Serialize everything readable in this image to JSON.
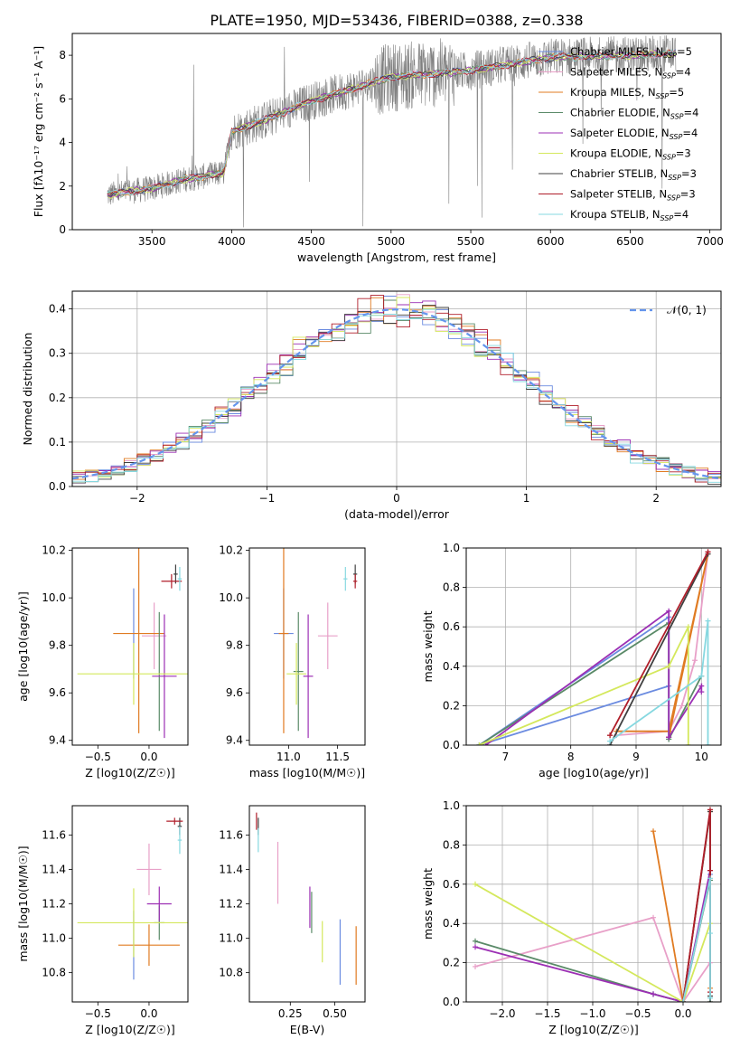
{
  "figure": {
    "title": "PLATE=1950, MJD=53436, FIBERID=0388, z=0.338"
  },
  "colors": {
    "spectrum": "#808080",
    "normal": "#6495ED"
  },
  "models": [
    {
      "name": "Chabrier MILES, N$_{SSP}$=5",
      "label": "Chabrier MILES, N",
      "sub": "SSP",
      "rest": "=5",
      "color": "#6B8BE0"
    },
    {
      "name": "Salpeter MILES, N$_{SSP}$=4",
      "label": "Salpeter MILES, N",
      "sub": "SSP",
      "rest": "=4",
      "color": "#E8A0C8"
    },
    {
      "name": "Kroupa MILES, N$_{SSP}$=5",
      "label": "Kroupa MILES, N",
      "sub": "SSP",
      "rest": "=5",
      "color": "#E07B22"
    },
    {
      "name": "Chabrier ELODIE, N$_{SSP}$=4",
      "label": "Chabrier ELODIE, N",
      "sub": "SSP",
      "rest": "=4",
      "color": "#5A8A68"
    },
    {
      "name": "Salpeter ELODIE, N$_{SSP}$=4",
      "label": "Salpeter ELODIE, N",
      "sub": "SSP",
      "rest": "=4",
      "color": "#9C2FB4"
    },
    {
      "name": "Kroupa ELODIE, N$_{SSP}$=3",
      "label": "Kroupa ELODIE, N",
      "sub": "SSP",
      "rest": "=3",
      "color": "#D4E85C"
    },
    {
      "name": "Chabrier STELIB, N$_{SSP}$=3",
      "label": "Chabrier STELIB, N",
      "sub": "SSP",
      "rest": "=3",
      "color": "#404040"
    },
    {
      "name": "Salpeter STELIB, N$_{SSP}$=3",
      "label": "Salpeter STELIB, N",
      "sub": "SSP",
      "rest": "=3",
      "color": "#B01E2A"
    },
    {
      "name": "Kroupa STELIB, N$_{SSP}$=4",
      "label": "Kroupa STELIB, N",
      "sub": "SSP",
      "rest": "=4",
      "color": "#86D8E0"
    }
  ],
  "chart_data": [
    {
      "id": "spectrum",
      "type": "line",
      "xlabel": "wavelength [Angstrom, rest frame]",
      "ylabel": "Flux [fλ10⁻¹⁷ erg cm⁻² s⁻¹ A⁻¹]",
      "xlim": [
        3000,
        7070
      ],
      "ylim": [
        0,
        9
      ],
      "xticks": [
        3500,
        4000,
        4500,
        5000,
        5500,
        6000,
        6500,
        7000
      ],
      "yticks": [
        0,
        2,
        4,
        6,
        8
      ],
      "x_range_data": [
        3220,
        6790
      ],
      "continuum": [
        [
          3220,
          1.6
        ],
        [
          3500,
          1.9
        ],
        [
          3700,
          2.3
        ],
        [
          3950,
          2.6
        ],
        [
          4000,
          4.5
        ],
        [
          4200,
          5.0
        ],
        [
          4500,
          5.9
        ],
        [
          5000,
          7.0
        ],
        [
          5500,
          7.3
        ],
        [
          6000,
          7.9
        ],
        [
          6500,
          8.0
        ],
        [
          6790,
          8.1
        ]
      ],
      "grid": false,
      "legend": "top-right"
    },
    {
      "id": "residuals",
      "type": "step",
      "xlabel": "(data-model)/error",
      "ylabel": "Normed distribution",
      "xlim": [
        -2.5,
        2.5
      ],
      "ylim": [
        0,
        0.44
      ],
      "xticks": [
        -2,
        -1,
        0,
        1,
        2
      ],
      "yticks": [
        0.0,
        0.1,
        0.2,
        0.3,
        0.4
      ],
      "bin_edges_start": -2.5,
      "bin_width": 0.1,
      "normal_label": "𝒩(0, 1)",
      "grid": true,
      "legend": "top-right"
    },
    {
      "id": "age_vs_Z",
      "type": "scatter",
      "xlabel": "Z [log10(Z/Z☉)]",
      "ylabel": "age  [log10(age/yr)]",
      "xlim": [
        -0.75,
        0.38
      ],
      "ylim": [
        9.38,
        10.21
      ],
      "xticks": [
        -0.5,
        0.0
      ],
      "yticks": [
        9.4,
        9.6,
        9.8,
        10.0,
        10.2
      ],
      "points": [
        {
          "x": -0.15,
          "y": 9.85,
          "xerr": 0.0,
          "yerr": 0.19
        },
        {
          "x": 0.05,
          "y": 9.84,
          "xerr": 0.12,
          "yerr": 0.14
        },
        {
          "x": -0.1,
          "y": 9.85,
          "xerr": 0.25,
          "yerr": 0.42
        },
        {
          "x": 0.1,
          "y": 9.69,
          "xerr": 0.0,
          "yerr": 0.25
        },
        {
          "x": 0.15,
          "y": 9.67,
          "xerr": 0.12,
          "yerr": 0.26
        },
        {
          "x": -0.15,
          "y": 9.68,
          "xerr": 0.55,
          "yerr": 0.13
        },
        {
          "x": 0.26,
          "y": 10.1,
          "xerr": 0.02,
          "yerr": 0.04
        },
        {
          "x": 0.22,
          "y": 10.07,
          "xerr": 0.1,
          "yerr": 0.03
        },
        {
          "x": 0.3,
          "y": 10.08,
          "xerr": 0.02,
          "yerr": 0.05
        }
      ],
      "grid": false
    },
    {
      "id": "age_vs_mass",
      "type": "scatter",
      "xlabel": "mass [log10(M/M☉)]",
      "ylabel": "",
      "xlim": [
        10.6,
        11.78
      ],
      "ylim": [
        9.38,
        10.21
      ],
      "xticks": [
        11.0,
        11.5
      ],
      "yticks": [
        9.4,
        9.6,
        9.8,
        10.0,
        10.2
      ],
      "points": [
        {
          "x": 10.95,
          "y": 9.85,
          "xerr": 0.1,
          "yerr": 0.19
        },
        {
          "x": 11.4,
          "y": 9.84,
          "xerr": 0.1,
          "yerr": 0.14
        },
        {
          "x": 10.95,
          "y": 9.85,
          "xerr": 0.05,
          "yerr": 0.42
        },
        {
          "x": 11.1,
          "y": 9.69,
          "xerr": 0.05,
          "yerr": 0.25
        },
        {
          "x": 11.2,
          "y": 9.67,
          "xerr": 0.05,
          "yerr": 0.26
        },
        {
          "x": 11.08,
          "y": 9.68,
          "xerr": 0.1,
          "yerr": 0.13
        },
        {
          "x": 11.68,
          "y": 10.1,
          "xerr": 0.02,
          "yerr": 0.04
        },
        {
          "x": 11.68,
          "y": 10.07,
          "xerr": 0.02,
          "yerr": 0.03
        },
        {
          "x": 11.58,
          "y": 10.08,
          "xerr": 0.02,
          "yerr": 0.05
        }
      ],
      "grid": false
    },
    {
      "id": "mass_weight_vs_age",
      "type": "line",
      "xlabel": "age  [log10(age/yr)]",
      "ylabel": "mass weight",
      "xlim": [
        6.4,
        10.3
      ],
      "ylim": [
        0,
        1
      ],
      "xticks": [
        7,
        8,
        9,
        10
      ],
      "yticks": [
        0.0,
        0.2,
        0.4,
        0.6,
        0.8,
        1.0
      ],
      "series": [
        {
          "x": [
            6.6,
            9.5,
            9.5,
            9.5,
            6.6
          ],
          "y": [
            0.0,
            0.65,
            0.04,
            0.3,
            0.0
          ]
        },
        {
          "x": [
            8.7,
            9.5,
            9.7,
            9.9,
            10.1
          ],
          "y": [
            0.05,
            0.07,
            0.2,
            0.43,
            0.97
          ]
        },
        {
          "x": [
            8.7,
            9.5,
            10.1,
            9.5
          ],
          "y": [
            0.07,
            0.07,
            0.97,
            0.04
          ]
        },
        {
          "x": [
            6.6,
            9.5,
            9.5,
            10.0,
            9.5
          ],
          "y": [
            0.0,
            0.62,
            0.03,
            0.35,
            0.03
          ]
        },
        {
          "x": [
            6.7,
            9.5,
            9.5,
            10.0,
            10.0
          ],
          "y": [
            0.0,
            0.68,
            0.04,
            0.3,
            0.27
          ]
        },
        {
          "x": [
            6.6,
            9.5,
            9.8,
            9.8
          ],
          "y": [
            0.0,
            0.4,
            0.6,
            0.0
          ]
        },
        {
          "x": [
            8.6,
            10.1,
            10.1,
            8.6
          ],
          "y": [
            0.0,
            0.97,
            0.97,
            0.0
          ]
        },
        {
          "x": [
            8.6,
            10.1,
            10.1,
            8.6
          ],
          "y": [
            0.05,
            0.98,
            0.98,
            0.05
          ]
        },
        {
          "x": [
            8.6,
            10.0,
            10.1,
            10.1
          ],
          "y": [
            0.02,
            0.35,
            0.63,
            0.0
          ]
        }
      ],
      "grid": true
    },
    {
      "id": "mass_vs_Z",
      "type": "scatter",
      "xlabel": "Z [log10(Z/Z☉)]",
      "ylabel": "mass [log10(M/M☉)]",
      "xlim": [
        -0.75,
        0.38
      ],
      "ylim": [
        10.63,
        11.77
      ],
      "xticks": [
        -0.5,
        0.0
      ],
      "yticks": [
        10.8,
        11.0,
        11.2,
        11.4,
        11.6
      ],
      "points": [
        {
          "x": -0.15,
          "y": 10.96,
          "xerr": 0.0,
          "yerr": 0.2
        },
        {
          "x": 0.0,
          "y": 11.4,
          "xerr": 0.12,
          "yerr": 0.15
        },
        {
          "x": 0.0,
          "y": 10.96,
          "xerr": 0.3,
          "yerr": 0.12
        },
        {
          "x": 0.1,
          "y": 11.09,
          "xerr": 0.05,
          "yerr": 0.1
        },
        {
          "x": 0.1,
          "y": 11.2,
          "xerr": 0.12,
          "yerr": 0.1
        },
        {
          "x": -0.15,
          "y": 11.09,
          "xerr": 0.55,
          "yerr": 0.2
        },
        {
          "x": 0.3,
          "y": 11.65,
          "xerr": 0.02,
          "yerr": 0.05
        },
        {
          "x": 0.25,
          "y": 11.68,
          "xerr": 0.08,
          "yerr": 0.02
        },
        {
          "x": 0.3,
          "y": 11.57,
          "xerr": 0.02,
          "yerr": 0.08
        }
      ],
      "grid": false
    },
    {
      "id": "mass_vs_ebv",
      "type": "scatter",
      "xlabel": "E(B-V)",
      "ylabel": "",
      "xlim": [
        0.02,
        0.67
      ],
      "ylim": [
        10.63,
        11.77
      ],
      "xticks": [
        0.25,
        0.5
      ],
      "yticks": [
        10.8,
        11.0,
        11.2,
        11.4,
        11.6
      ],
      "points": [
        {
          "x": 0.53,
          "y": 10.92,
          "xerr": 0.0,
          "yerr": 0.19
        },
        {
          "x": 0.18,
          "y": 11.38,
          "xerr": 0.0,
          "yerr": 0.18
        },
        {
          "x": 0.62,
          "y": 10.9,
          "xerr": 0.0,
          "yerr": 0.17
        },
        {
          "x": 0.37,
          "y": 11.15,
          "xerr": 0.0,
          "yerr": 0.12
        },
        {
          "x": 0.36,
          "y": 11.18,
          "xerr": 0.0,
          "yerr": 0.12
        },
        {
          "x": 0.43,
          "y": 10.98,
          "xerr": 0.0,
          "yerr": 0.12
        },
        {
          "x": 0.07,
          "y": 11.65,
          "xerr": 0.0,
          "yerr": 0.05
        },
        {
          "x": 0.06,
          "y": 11.68,
          "xerr": 0.0,
          "yerr": 0.05
        },
        {
          "x": 0.07,
          "y": 11.57,
          "xerr": 0.0,
          "yerr": 0.07
        }
      ],
      "grid": false
    },
    {
      "id": "mass_weight_vs_Z",
      "type": "line",
      "xlabel": "Z [log10(Z/Z☉)]",
      "ylabel": "mass weight",
      "xlim": [
        -2.4,
        0.42
      ],
      "ylim": [
        0,
        1
      ],
      "xticks": [
        -2.0,
        -1.5,
        -1.0,
        -0.5,
        0.0
      ],
      "yticks": [
        0.0,
        0.2,
        0.4,
        0.6,
        0.8,
        1.0
      ],
      "series": [
        {
          "x": [
            -0.33,
            0.0,
            0.3,
            0.3
          ],
          "y": [
            0.04,
            0.0,
            0.65,
            0.0
          ]
        },
        {
          "x": [
            -2.3,
            -0.33,
            0.0,
            0.3
          ],
          "y": [
            0.18,
            0.43,
            0.0,
            0.2
          ]
        },
        {
          "x": [
            -0.33,
            0.0,
            0.3,
            0.3
          ],
          "y": [
            0.87,
            0.0,
            0.97,
            0.07
          ]
        },
        {
          "x": [
            -2.3,
            -0.33,
            0.0,
            0.3
          ],
          "y": [
            0.31,
            0.04,
            0.0,
            0.62
          ]
        },
        {
          "x": [
            -2.3,
            -0.33,
            0.0,
            0.3
          ],
          "y": [
            0.28,
            0.04,
            0.0,
            0.67
          ]
        },
        {
          "x": [
            -2.3,
            0.0,
            0.3,
            0.3
          ],
          "y": [
            0.6,
            0.0,
            0.4,
            0.0
          ]
        },
        {
          "x": [
            0.0,
            0.3,
            0.3,
            0.3
          ],
          "y": [
            0.0,
            0.97,
            0.03,
            0.0
          ]
        },
        {
          "x": [
            0.0,
            0.3,
            0.3,
            0.3
          ],
          "y": [
            0.0,
            0.98,
            0.67,
            0.05
          ]
        },
        {
          "x": [
            0.0,
            0.3,
            0.3,
            0.3
          ],
          "y": [
            0.0,
            0.63,
            0.35,
            0.02
          ]
        }
      ],
      "grid": true
    }
  ]
}
